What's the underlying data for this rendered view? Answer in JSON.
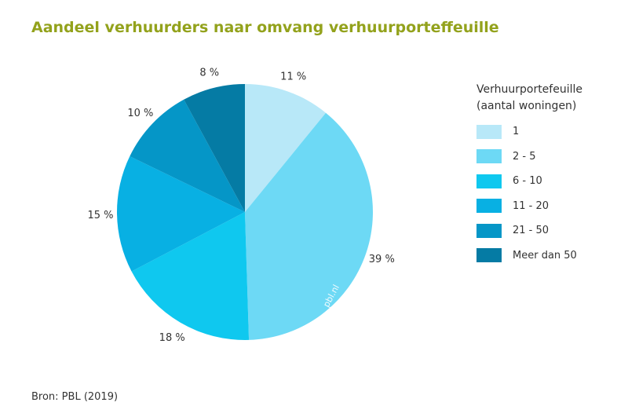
{
  "title": "Aandeel verhuurders naar omvang verhuurporteffeuille",
  "source": "Bron: PBL (2019)",
  "watermark": "pbl.nl",
  "legend": {
    "title_line1": "Verhuurportefeuille",
    "title_line2": "(aantal woningen)"
  },
  "chart_data": {
    "type": "pie",
    "title": "Aandeel verhuurders naar omvang verhuurporteffeuille",
    "start_angle": "12 o'clock, clockwise",
    "legend_position": "right",
    "slices": [
      {
        "label": "1",
        "value": 11,
        "value_label": "11 %",
        "color": "#b8e8f8"
      },
      {
        "label": "2 - 5",
        "value": 39,
        "value_label": "39 %",
        "color": "#6dd9f5"
      },
      {
        "label": "6 - 10",
        "value": 18,
        "value_label": "18 %",
        "color": "#0fc8ef"
      },
      {
        "label": "11 - 20",
        "value": 15,
        "value_label": "15 %",
        "color": "#08b0e3"
      },
      {
        "label": "21 - 50",
        "value": 10,
        "value_label": "10 %",
        "color": "#0596c7"
      },
      {
        "label": "Meer dan 50",
        "value": 8,
        "value_label": "8 %",
        "color": "#057ba4"
      }
    ]
  }
}
